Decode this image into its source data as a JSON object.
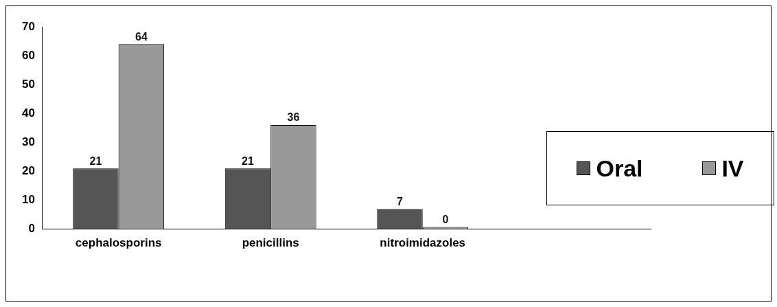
{
  "chart_data": {
    "type": "bar",
    "categories": [
      "cephalosporins",
      "penicillins",
      "nitroimidazoles",
      null
    ],
    "series": [
      {
        "name": "Oral",
        "color": "#555555",
        "values": [
          21,
          21,
          7,
          null
        ]
      },
      {
        "name": "IV",
        "color": "#999999",
        "values": [
          64,
          36,
          0,
          null
        ]
      }
    ],
    "ylim": [
      0,
      70
    ],
    "yticks": [
      0,
      10,
      20,
      30,
      40,
      50,
      60,
      70
    ],
    "grid": false,
    "legend": "right",
    "data_labels": true
  }
}
